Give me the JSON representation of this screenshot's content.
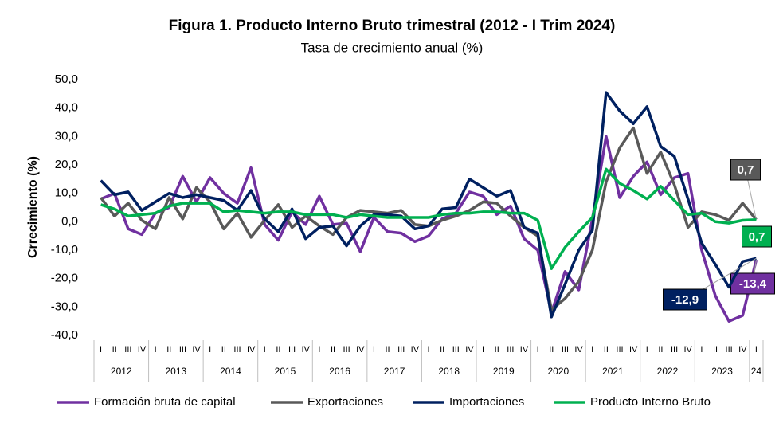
{
  "chart_data": {
    "type": "line",
    "title": "Figura 1. Producto Interno Bruto trimestral (2012 - I Trim 2024)",
    "subtitle": "Tasa de crecimiento anual (%)",
    "y_label": "Crrecimiento (%)",
    "categories": [
      "I",
      "II",
      "III",
      "IV",
      "I",
      "II",
      "III",
      "IV",
      "I",
      "II",
      "III",
      "IV",
      "I",
      "II",
      "III",
      "IV",
      "I",
      "II",
      "III",
      "IV",
      "I",
      "II",
      "III",
      "IV",
      "I",
      "II",
      "III",
      "IV",
      "I",
      "II",
      "III",
      "IV",
      "I",
      "II",
      "III",
      "IV",
      "I",
      "II",
      "III",
      "IV",
      "I",
      "II",
      "III",
      "IV",
      "I",
      "II",
      "III",
      "IV",
      "I"
    ],
    "year_labels": [
      "2012",
      "2013",
      "2014",
      "2015",
      "2016",
      "2017",
      "2018",
      "2019",
      "2020",
      "2021",
      "2022",
      "2023",
      "24"
    ],
    "ylim": [
      -40,
      50
    ],
    "yticks": [
      {
        "value": -40,
        "label": "-40,0"
      },
      {
        "value": -30,
        "label": "-30,0"
      },
      {
        "value": -20,
        "label": "-20,0"
      },
      {
        "value": -10,
        "label": "-10,0"
      },
      {
        "value": 0,
        "label": "0,0"
      },
      {
        "value": 10,
        "label": "10,0"
      },
      {
        "value": 20,
        "label": "20,0"
      },
      {
        "value": 30,
        "label": "30,0"
      },
      {
        "value": 40,
        "label": "40,0"
      },
      {
        "value": 50,
        "label": "50,0"
      }
    ],
    "grid": false,
    "legend": "bottom",
    "series": [
      {
        "name": "Formación bruta de capital",
        "color": "#7030a0",
        "values": [
          8,
          10,
          -2.5,
          -4.5,
          3,
          5,
          16,
          7,
          15.5,
          10,
          6.5,
          19,
          -1,
          -6.5,
          3.5,
          -1,
          9,
          -1,
          -0.5,
          -10.5,
          1.5,
          -3.5,
          -4,
          -7,
          -5,
          1,
          3,
          10.5,
          9,
          2.5,
          5.5,
          -6,
          -10,
          -32,
          -17.5,
          -24,
          1,
          30,
          8.5,
          16,
          21,
          9.5,
          15.5,
          17,
          -10,
          -26,
          -35,
          -33,
          -13.4
        ],
        "value_labels": [
          null,
          null,
          null,
          null,
          null,
          null,
          null,
          null,
          null,
          null,
          null,
          null,
          null,
          null,
          null,
          null,
          null,
          null,
          null,
          null,
          null,
          null,
          null,
          null,
          null,
          null,
          null,
          null,
          null,
          null,
          null,
          null,
          null,
          null,
          null,
          null,
          null,
          null,
          null,
          null,
          null,
          null,
          null,
          null,
          null,
          null,
          null,
          null,
          "-13,4"
        ]
      },
      {
        "name": "Exportaciones",
        "color": "#595959",
        "values": [
          8.5,
          2,
          6.5,
          0.5,
          -2.5,
          8.5,
          1,
          12,
          7,
          -2.5,
          3,
          -5.5,
          0.5,
          6,
          -2,
          2,
          -1.5,
          -4.5,
          1.5,
          4,
          3.5,
          3,
          4,
          -1,
          -1.5,
          0.5,
          2,
          4,
          7,
          6.5,
          2,
          -2,
          -5,
          -31,
          -27,
          -21,
          -10,
          14,
          26,
          33,
          17,
          24.5,
          13,
          -2,
          3.5,
          2.5,
          0.5,
          6.5,
          0.7
        ],
        "value_labels": [
          null,
          null,
          null,
          null,
          null,
          null,
          null,
          null,
          null,
          null,
          null,
          null,
          null,
          null,
          null,
          null,
          null,
          null,
          null,
          null,
          null,
          null,
          null,
          null,
          null,
          null,
          null,
          null,
          null,
          null,
          null,
          null,
          null,
          null,
          null,
          null,
          null,
          null,
          null,
          null,
          null,
          null,
          null,
          null,
          null,
          null,
          null,
          null,
          "0,7"
        ]
      },
      {
        "name": "Importaciones",
        "color": "#002060",
        "values": [
          14.5,
          9.5,
          10.5,
          4,
          7,
          10,
          8.5,
          9.5,
          8.5,
          7.5,
          4,
          11,
          1,
          -3.5,
          4.5,
          -6,
          -2,
          -1.5,
          -8.5,
          -1.5,
          2.5,
          2.5,
          2,
          -2.5,
          -1.5,
          4.5,
          5,
          15,
          12,
          9,
          11,
          -2,
          -4,
          -33.5,
          -22,
          -10,
          -3,
          45.5,
          39,
          34.5,
          40.5,
          26.5,
          23,
          8,
          -7.5,
          -15,
          -23,
          -14,
          -12.9
        ],
        "value_labels": [
          null,
          null,
          null,
          null,
          null,
          null,
          null,
          null,
          null,
          null,
          null,
          null,
          null,
          null,
          null,
          null,
          null,
          null,
          null,
          null,
          null,
          null,
          null,
          null,
          null,
          null,
          null,
          null,
          null,
          null,
          null,
          null,
          null,
          null,
          null,
          null,
          null,
          null,
          null,
          null,
          null,
          null,
          null,
          null,
          null,
          null,
          null,
          null,
          "-12,9"
        ]
      },
      {
        "name": "Producto Interno Bruto",
        "color": "#00b050",
        "values": [
          6,
          4.5,
          2,
          2.5,
          3,
          5.5,
          6.5,
          6.5,
          6.5,
          3.5,
          4,
          3.5,
          3,
          3.5,
          3.5,
          2.5,
          2.5,
          2.5,
          1.5,
          2.5,
          2,
          1.5,
          1.5,
          1.5,
          1.5,
          2.5,
          3,
          3,
          3.5,
          3.5,
          3,
          3,
          0.5,
          -16.5,
          -9,
          -3.5,
          1.5,
          18.5,
          13.5,
          11,
          8,
          12.5,
          7.5,
          2.5,
          3,
          0,
          -0.5,
          0.5,
          0.7
        ],
        "value_labels": [
          null,
          null,
          null,
          null,
          null,
          null,
          null,
          null,
          null,
          null,
          null,
          null,
          null,
          null,
          null,
          null,
          null,
          null,
          null,
          null,
          null,
          null,
          null,
          null,
          null,
          null,
          null,
          null,
          null,
          null,
          null,
          null,
          null,
          null,
          null,
          null,
          null,
          null,
          null,
          null,
          null,
          null,
          null,
          null,
          null,
          null,
          null,
          null,
          "0,7"
        ]
      }
    ]
  }
}
